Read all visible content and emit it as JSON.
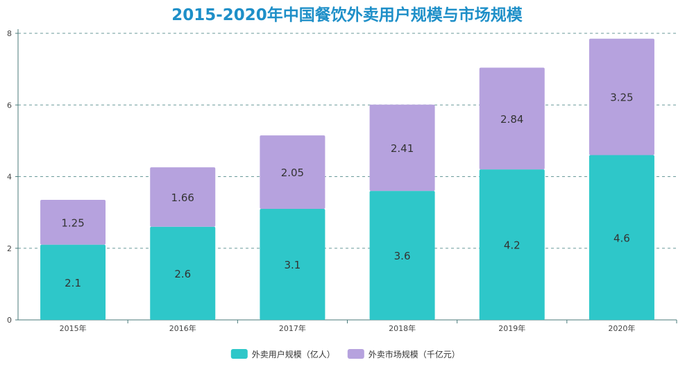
{
  "chart_data": {
    "type": "bar",
    "stacked": true,
    "title": "2015-2020年中国餐饮外卖用户规模与市场规模",
    "categories": [
      "2015年",
      "2016年",
      "2017年",
      "2018年",
      "2019年",
      "2020年"
    ],
    "series": [
      {
        "name": "外卖用户规模（亿人）",
        "values": [
          2.1,
          2.6,
          3.1,
          3.6,
          4.2,
          4.6
        ],
        "color": "#2ec7c9"
      },
      {
        "name": "外卖市场规模（千亿元）",
        "values": [
          1.25,
          1.66,
          2.05,
          2.41,
          2.84,
          3.25
        ],
        "color": "#b6a2de"
      }
    ],
    "ylim": [
      0,
      8
    ],
    "yticks": [
      0,
      2,
      4,
      6,
      8
    ],
    "grid": true,
    "legend_position": "bottom",
    "title_color": "#1e8fc8",
    "grid_color": "#6a9a9a",
    "axis_color": "#4a7a7a"
  }
}
